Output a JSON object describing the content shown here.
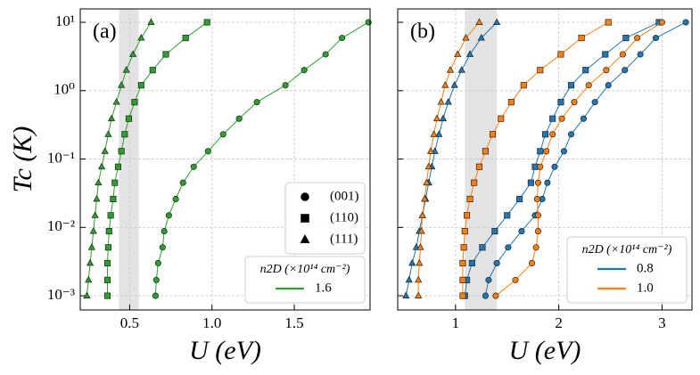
{
  "chart_data": [
    {
      "type": "line",
      "panel_label": "(a)",
      "ylabel": "Tc (K)",
      "xlabel": "U (eV)",
      "xlim": [
        0.2,
        1.96
      ],
      "xticks": [
        0.5,
        {
          "value": 1,
          "label": "1.0"
        },
        1.5
      ],
      "ylim": [
        0.00062,
        15.7
      ],
      "log_y": true,
      "show_ytick_labels": true,
      "grid": true,
      "yticks": [
        {
          "value": 0.001,
          "label": "10⁻³"
        },
        {
          "value": 0.01,
          "label": "10⁻²"
        },
        {
          "value": 0.1,
          "label": "10⁻¹"
        },
        {
          "value": 1,
          "label": "10⁰"
        },
        {
          "value": 10,
          "label": "10¹"
        }
      ],
      "shaded_region": [
        0.435,
        0.555
      ],
      "marker_legend": [
        {
          "label": "(001)",
          "marker": "circle"
        },
        {
          "label": "(110)",
          "marker": "square"
        },
        {
          "label": "(111)",
          "marker": "triangle"
        }
      ],
      "color_legend": {
        "title": "n2D (×10¹⁴ cm⁻²)",
        "entries": [
          {
            "name": "1.6",
            "color": "#2ca02c"
          }
        ]
      },
      "series": [
        {
          "marker": "circle",
          "color": "#2ca02c",
          "x": [
            0.657,
            0.662,
            0.673,
            0.7,
            0.71,
            0.738,
            0.78,
            0.824,
            0.889,
            0.976,
            1.068,
            1.165,
            1.273,
            1.446,
            1.56,
            1.69,
            1.79,
            1.95
          ],
          "values": [
            0.001,
            0.0017,
            0.003,
            0.0051,
            0.0088,
            0.015,
            0.026,
            0.045,
            0.077,
            0.13,
            0.23,
            0.39,
            0.68,
            1.2,
            2.0,
            3.4,
            5.9,
            10
          ]
        },
        {
          "marker": "square",
          "color": "#2ca02c",
          "x": [
            0.365,
            0.365,
            0.365,
            0.37,
            0.375,
            0.385,
            0.4,
            0.41,
            0.43,
            0.45,
            0.47,
            0.495,
            0.53,
            0.57,
            0.64,
            0.72,
            0.84,
            0.97
          ],
          "values": [
            0.001,
            0.0017,
            0.003,
            0.0051,
            0.0088,
            0.015,
            0.026,
            0.045,
            0.077,
            0.13,
            0.23,
            0.39,
            0.68,
            1.2,
            2.0,
            3.4,
            5.9,
            10
          ]
        },
        {
          "marker": "triangle",
          "color": "#2ca02c",
          "x": [
            0.24,
            0.25,
            0.26,
            0.27,
            0.28,
            0.29,
            0.3,
            0.31,
            0.33,
            0.35,
            0.37,
            0.39,
            0.42,
            0.45,
            0.48,
            0.52,
            0.57,
            0.63
          ],
          "values": [
            0.001,
            0.0017,
            0.003,
            0.0051,
            0.0088,
            0.015,
            0.026,
            0.045,
            0.077,
            0.13,
            0.23,
            0.39,
            0.68,
            1.2,
            2.0,
            3.4,
            5.9,
            10
          ]
        }
      ]
    },
    {
      "type": "line",
      "panel_label": "(b)",
      "xlabel": "U (eV)",
      "xlim": [
        0.44,
        3.29
      ],
      "xticks": [
        1,
        2,
        3
      ],
      "ylim": [
        0.00062,
        15.7
      ],
      "log_y": true,
      "show_ytick_labels": false,
      "grid": true,
      "yticks": [
        0.001,
        0.01,
        0.1,
        1,
        10
      ],
      "shaded_region": [
        1.09,
        1.4
      ],
      "color_legend": {
        "title": "n2D (×10¹⁴ cm⁻²)",
        "entries": [
          {
            "name": "0.8",
            "color": "#1f77b4"
          },
          {
            "name": "1.0",
            "color": "#ff7f0e"
          }
        ]
      },
      "series": [
        {
          "marker": "circle",
          "color": "#1f77b4",
          "x": [
            1.29,
            1.32,
            1.4,
            1.51,
            1.64,
            1.77,
            1.84,
            1.89,
            1.96,
            2.05,
            2.12,
            2.24,
            2.35,
            2.48,
            2.64,
            2.79,
            2.94,
            3.23
          ],
          "values": [
            0.001,
            0.0017,
            0.003,
            0.0051,
            0.0088,
            0.015,
            0.026,
            0.045,
            0.077,
            0.13,
            0.23,
            0.39,
            0.68,
            1.2,
            2.0,
            3.4,
            5.9,
            10
          ]
        },
        {
          "marker": "square",
          "color": "#1f77b4",
          "x": [
            1.09,
            1.11,
            1.16,
            1.26,
            1.38,
            1.5,
            1.62,
            1.73,
            1.77,
            1.82,
            1.87,
            1.94,
            2.02,
            2.12,
            2.26,
            2.45,
            2.65,
            2.97
          ],
          "values": [
            0.001,
            0.0017,
            0.003,
            0.0051,
            0.0088,
            0.015,
            0.026,
            0.045,
            0.077,
            0.13,
            0.23,
            0.39,
            0.68,
            1.2,
            2.0,
            3.4,
            5.9,
            10
          ]
        },
        {
          "marker": "triangle",
          "color": "#1f77b4",
          "x": [
            0.52,
            0.55,
            0.58,
            0.62,
            0.65,
            0.68,
            0.71,
            0.74,
            0.77,
            0.8,
            0.84,
            0.88,
            0.93,
            0.99,
            1.06,
            1.14,
            1.25,
            1.4
          ],
          "values": [
            0.001,
            0.0017,
            0.003,
            0.0051,
            0.0088,
            0.015,
            0.026,
            0.045,
            0.077,
            0.13,
            0.23,
            0.39,
            0.68,
            1.2,
            2.0,
            3.4,
            5.9,
            10
          ]
        },
        {
          "marker": "circle",
          "color": "#ff7f0e",
          "x": [
            1.39,
            1.58,
            1.74,
            1.78,
            1.8,
            1.8,
            1.79,
            1.8,
            1.82,
            1.88,
            1.94,
            2.03,
            2.15,
            2.29,
            2.46,
            2.62,
            2.76,
            3.0
          ],
          "values": [
            0.001,
            0.0017,
            0.003,
            0.0051,
            0.0088,
            0.015,
            0.026,
            0.045,
            0.077,
            0.13,
            0.23,
            0.39,
            0.68,
            1.2,
            2.0,
            3.4,
            5.9,
            10
          ]
        },
        {
          "marker": "square",
          "color": "#ff7f0e",
          "x": [
            1.07,
            1.07,
            1.07,
            1.08,
            1.09,
            1.11,
            1.14,
            1.18,
            1.23,
            1.29,
            1.36,
            1.44,
            1.54,
            1.66,
            1.82,
            2.02,
            2.22,
            2.48
          ],
          "values": [
            0.001,
            0.0017,
            0.003,
            0.0051,
            0.0088,
            0.015,
            0.026,
            0.045,
            0.077,
            0.13,
            0.23,
            0.39,
            0.68,
            1.2,
            2.0,
            3.4,
            5.9,
            10
          ]
        },
        {
          "marker": "triangle",
          "color": "#ff7f0e",
          "x": [
            0.64,
            0.64,
            0.65,
            0.66,
            0.67,
            0.68,
            0.7,
            0.72,
            0.74,
            0.76,
            0.79,
            0.82,
            0.86,
            0.9,
            0.95,
            1.02,
            1.1,
            1.23
          ],
          "values": [
            0.001,
            0.0017,
            0.003,
            0.0051,
            0.0088,
            0.015,
            0.026,
            0.045,
            0.077,
            0.13,
            0.23,
            0.39,
            0.68,
            1.2,
            2.0,
            3.4,
            5.9,
            10
          ]
        }
      ]
    }
  ]
}
